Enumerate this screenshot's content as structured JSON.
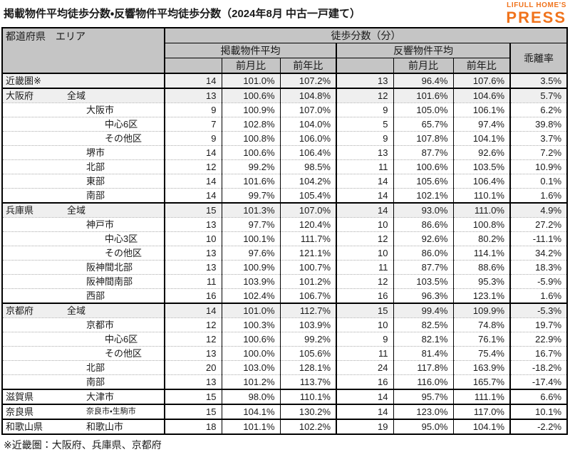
{
  "title": "掲載物件平均徒歩分数・反響物件平均徒歩分数（2024年8月 中古一戸建て）",
  "logo": {
    "line1": "LIFULL HOME'S",
    "line2": "PRESS",
    "color": "#f0731c"
  },
  "footnote": "※近畿圏：大阪府、兵庫県、京都府",
  "colors": {
    "header_bg": "#c5c5c5",
    "highlight_row_bg": "#efefef",
    "border": "#000000",
    "logo_orange": "#f0731c"
  },
  "chart_data": {
    "type": "table",
    "title": "掲載物件平均徒歩分数・反響物件平均徒歩分数（2024年8月 中古一戸建て）",
    "header": {
      "area": "都道府県　エリア",
      "walk_minutes": "徒歩分数（分）",
      "listed": "掲載物件平均",
      "response": "反響物件平均",
      "divergence": "乖離率",
      "mom": "前月比",
      "yoy": "前年比"
    },
    "columns": [
      "都道府県/エリア",
      "掲載物件平均(分)",
      "掲載前月比",
      "掲載前年比",
      "反響物件平均(分)",
      "反響前月比",
      "反響前年比",
      "乖離率"
    ],
    "rows": [
      {
        "pref": "近畿圏※",
        "area": "",
        "indent": 0,
        "highlight": true,
        "section_start": true,
        "values": [
          "14",
          "101.0%",
          "107.2%",
          "13",
          "96.4%",
          "107.6%",
          "3.5%"
        ]
      },
      {
        "pref": "大阪府",
        "area": "全域",
        "indent": 1,
        "highlight": true,
        "section_start": true,
        "values": [
          "13",
          "100.6%",
          "104.8%",
          "12",
          "101.6%",
          "104.6%",
          "5.7%"
        ]
      },
      {
        "pref": "",
        "area": "大阪市",
        "indent": 2,
        "highlight": false,
        "section_start": false,
        "values": [
          "9",
          "100.9%",
          "107.0%",
          "9",
          "105.0%",
          "106.1%",
          "6.2%"
        ]
      },
      {
        "pref": "",
        "area": "中心6区",
        "indent": 3,
        "highlight": false,
        "section_start": false,
        "values": [
          "7",
          "102.8%",
          "104.0%",
          "5",
          "65.7%",
          "97.4%",
          "39.8%"
        ]
      },
      {
        "pref": "",
        "area": "その他区",
        "indent": 3,
        "highlight": false,
        "section_start": false,
        "values": [
          "9",
          "100.8%",
          "106.0%",
          "9",
          "107.8%",
          "104.1%",
          "3.7%"
        ]
      },
      {
        "pref": "",
        "area": "堺市",
        "indent": 2,
        "highlight": false,
        "section_start": false,
        "values": [
          "14",
          "100.6%",
          "106.4%",
          "13",
          "87.7%",
          "92.6%",
          "7.2%"
        ]
      },
      {
        "pref": "",
        "area": "北部",
        "indent": 2,
        "highlight": false,
        "section_start": false,
        "values": [
          "12",
          "99.2%",
          "98.5%",
          "11",
          "100.6%",
          "103.5%",
          "10.9%"
        ]
      },
      {
        "pref": "",
        "area": "東部",
        "indent": 2,
        "highlight": false,
        "section_start": false,
        "values": [
          "14",
          "101.6%",
          "104.2%",
          "14",
          "105.6%",
          "106.4%",
          "0.1%"
        ]
      },
      {
        "pref": "",
        "area": "南部",
        "indent": 2,
        "highlight": false,
        "section_start": false,
        "values": [
          "14",
          "99.7%",
          "105.4%",
          "14",
          "102.1%",
          "110.1%",
          "1.6%"
        ]
      },
      {
        "pref": "兵庫県",
        "area": "全域",
        "indent": 1,
        "highlight": true,
        "section_start": true,
        "values": [
          "15",
          "101.3%",
          "107.0%",
          "14",
          "93.0%",
          "111.0%",
          "4.9%"
        ]
      },
      {
        "pref": "",
        "area": "神戸市",
        "indent": 2,
        "highlight": false,
        "section_start": false,
        "values": [
          "13",
          "97.7%",
          "120.4%",
          "10",
          "86.6%",
          "100.8%",
          "27.2%"
        ]
      },
      {
        "pref": "",
        "area": "中心3区",
        "indent": 3,
        "highlight": false,
        "section_start": false,
        "values": [
          "10",
          "100.1%",
          "111.7%",
          "12",
          "92.6%",
          "80.2%",
          "-11.1%"
        ]
      },
      {
        "pref": "",
        "area": "その他区",
        "indent": 3,
        "highlight": false,
        "section_start": false,
        "values": [
          "13",
          "97.6%",
          "121.1%",
          "10",
          "86.0%",
          "114.1%",
          "34.2%"
        ]
      },
      {
        "pref": "",
        "area": "阪神間北部",
        "indent": 2,
        "highlight": false,
        "section_start": false,
        "values": [
          "13",
          "100.9%",
          "100.7%",
          "11",
          "87.7%",
          "88.6%",
          "18.3%"
        ]
      },
      {
        "pref": "",
        "area": "阪神間南部",
        "indent": 2,
        "highlight": false,
        "section_start": false,
        "values": [
          "11",
          "103.9%",
          "101.2%",
          "12",
          "103.5%",
          "95.3%",
          "-5.9%"
        ]
      },
      {
        "pref": "",
        "area": "西部",
        "indent": 2,
        "highlight": false,
        "section_start": false,
        "values": [
          "16",
          "102.4%",
          "106.7%",
          "16",
          "96.3%",
          "123.1%",
          "1.6%"
        ]
      },
      {
        "pref": "京都府",
        "area": "全域",
        "indent": 1,
        "highlight": true,
        "section_start": true,
        "values": [
          "14",
          "101.0%",
          "112.7%",
          "15",
          "99.4%",
          "109.9%",
          "-5.3%"
        ]
      },
      {
        "pref": "",
        "area": "京都市",
        "indent": 2,
        "highlight": false,
        "section_start": false,
        "values": [
          "12",
          "100.3%",
          "103.9%",
          "10",
          "82.5%",
          "74.8%",
          "19.7%"
        ]
      },
      {
        "pref": "",
        "area": "中心6区",
        "indent": 3,
        "highlight": false,
        "section_start": false,
        "values": [
          "12",
          "100.6%",
          "99.2%",
          "9",
          "82.1%",
          "76.1%",
          "22.9%"
        ]
      },
      {
        "pref": "",
        "area": "その他区",
        "indent": 3,
        "highlight": false,
        "section_start": false,
        "values": [
          "13",
          "100.0%",
          "105.6%",
          "11",
          "81.4%",
          "75.4%",
          "16.7%"
        ]
      },
      {
        "pref": "",
        "area": "北部",
        "indent": 2,
        "highlight": false,
        "section_start": false,
        "values": [
          "20",
          "103.0%",
          "128.1%",
          "24",
          "117.8%",
          "163.9%",
          "-18.2%"
        ]
      },
      {
        "pref": "",
        "area": "南部",
        "indent": 2,
        "highlight": false,
        "section_start": false,
        "values": [
          "13",
          "101.2%",
          "113.7%",
          "16",
          "116.0%",
          "165.7%",
          "-17.4%"
        ]
      },
      {
        "pref": "滋賀県",
        "area": "大津市",
        "indent": 2,
        "highlight": false,
        "section_start": true,
        "values": [
          "15",
          "98.0%",
          "110.1%",
          "14",
          "95.7%",
          "111.1%",
          "6.6%"
        ]
      },
      {
        "pref": "奈良県",
        "area": "奈良市・生駒市",
        "indent": 2,
        "small": true,
        "highlight": false,
        "section_start": true,
        "values": [
          "15",
          "104.1%",
          "130.2%",
          "14",
          "123.0%",
          "117.0%",
          "10.1%"
        ]
      },
      {
        "pref": "和歌山県",
        "area": "和歌山市",
        "indent": 2,
        "highlight": false,
        "section_start": true,
        "values": [
          "18",
          "101.1%",
          "102.2%",
          "19",
          "95.0%",
          "104.1%",
          "-2.2%"
        ]
      }
    ]
  }
}
